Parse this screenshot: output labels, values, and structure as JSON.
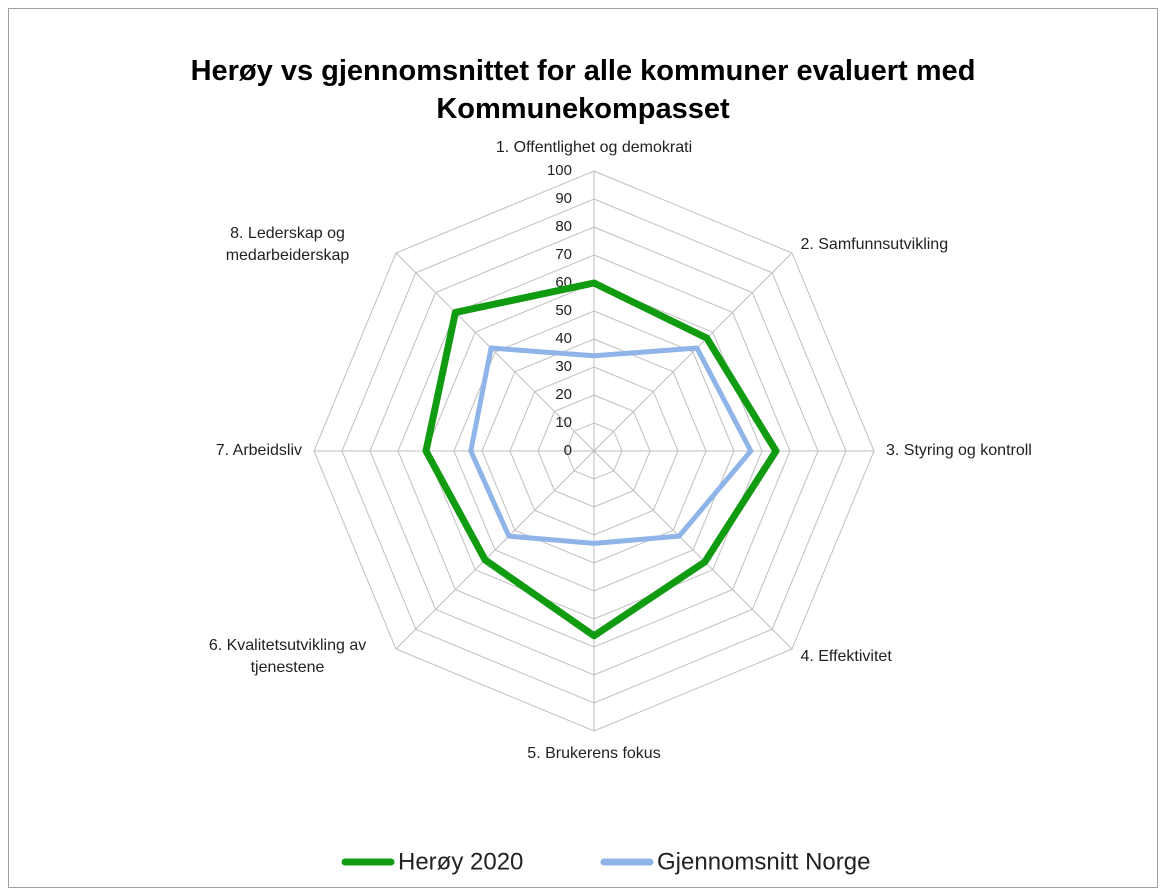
{
  "chart_data": {
    "type": "radar",
    "title": "Herøy vs gjennomsnittet for alle kommuner evaluert med Kommunekompasset",
    "categories": [
      "1. Offentlighet og demokrati",
      "2. Samfunnsutvikling",
      "3. Styring og kontroll",
      "4. Effektivitet",
      "5. Brukerens fokus",
      "6. Kvalitetsutvikling av tjenestene",
      "7. Arbeidsliv",
      "8. Lederskap og medarbeiderskap"
    ],
    "series": [
      {
        "name": "Herøy 2020",
        "color": "#119b11",
        "values": [
          60,
          57,
          65,
          56,
          66,
          55,
          60,
          70
        ]
      },
      {
        "name": "Gjennomsnitt Norge",
        "color": "#8fb4e8",
        "values": [
          34,
          52,
          56,
          43,
          33,
          43,
          44,
          52
        ]
      }
    ],
    "rlim": [
      0,
      100
    ],
    "rticks": [
      0,
      10,
      20,
      30,
      40,
      50,
      60,
      70,
      80,
      90,
      100
    ],
    "grid": true
  }
}
